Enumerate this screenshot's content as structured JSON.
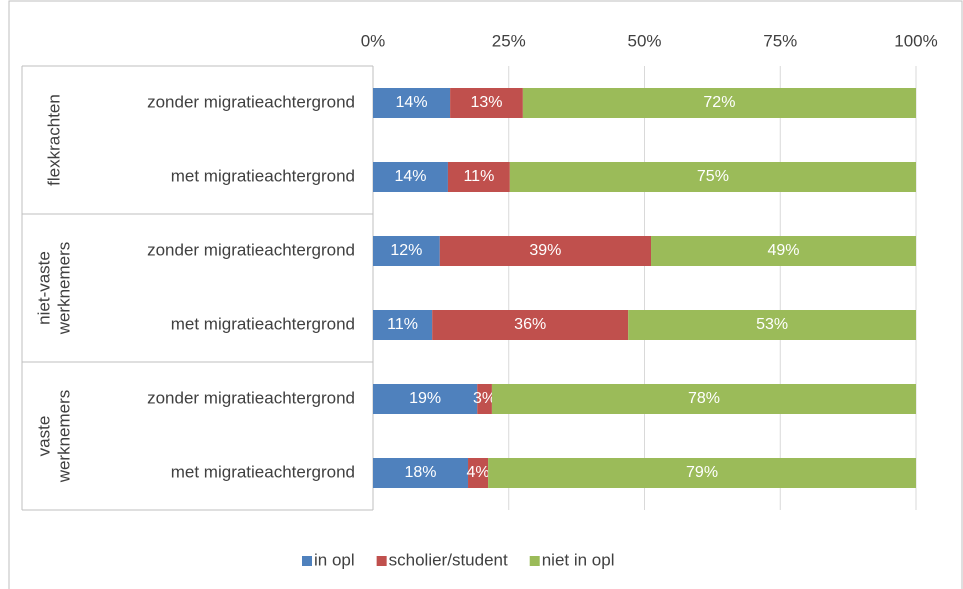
{
  "chart_data": {
    "type": "bar",
    "orientation": "horizontal",
    "stacked": true,
    "groups": [
      {
        "label": [
          "flexkrachten"
        ],
        "size": 2
      },
      {
        "label": [
          "niet-vaste",
          "werknemers"
        ],
        "size": 2
      },
      {
        "label": [
          "vaste",
          "werknemers"
        ],
        "size": 2
      }
    ],
    "categories": [
      "zonder migratieachtergrond",
      "met migratieachtergrond",
      "zonder migratieachtergrond",
      "met migratieachtergrond",
      "zonder migratieachtergrond",
      "met migratieachtergrond"
    ],
    "series": [
      {
        "name": "in opl",
        "color": "#4f81bd",
        "values": [
          14.2,
          13.8,
          12.3,
          10.9,
          19.2,
          17.5
        ],
        "value_labels": [
          "14%",
          "14%",
          "12%",
          "11%",
          "19%",
          "18%"
        ]
      },
      {
        "name": "scholier/student",
        "color": "#c0504d",
        "values": [
          13.4,
          11.4,
          38.9,
          36.1,
          2.7,
          3.7
        ],
        "value_labels": [
          "13%",
          "11%",
          "39%",
          "36%",
          "3%",
          "4%"
        ]
      },
      {
        "name": "niet in opl",
        "color": "#9bbb59",
        "values": [
          72.4,
          74.8,
          48.8,
          53.0,
          78.1,
          78.8
        ],
        "value_labels": [
          "72%",
          "75%",
          "49%",
          "53%",
          "78%",
          "79%"
        ]
      }
    ],
    "xlim": [
      0,
      100
    ],
    "xticks": [
      {
        "value": 0,
        "label": "0%"
      },
      {
        "value": 25,
        "label": "25%"
      },
      {
        "value": 50,
        "label": "50%"
      },
      {
        "value": 75,
        "label": "75%"
      },
      {
        "value": 100,
        "label": "100%"
      }
    ],
    "grid": true,
    "legend": "bottom"
  }
}
